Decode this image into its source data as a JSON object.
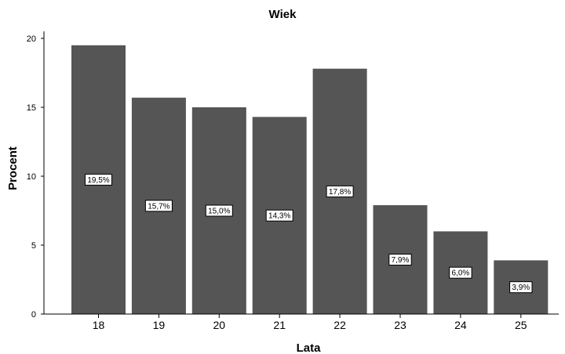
{
  "chart_data": {
    "type": "bar",
    "title": "Wiek",
    "xlabel": "Lata",
    "ylabel": "Procent",
    "categories": [
      "18",
      "19",
      "20",
      "21",
      "22",
      "23",
      "24",
      "25"
    ],
    "values": [
      19.5,
      15.7,
      15.0,
      14.3,
      17.8,
      7.9,
      6.0,
      3.9
    ],
    "data_labels": [
      "19,5%",
      "15,7%",
      "15,0%",
      "14,3%",
      "17,8%",
      "7,9%",
      "6,0%",
      "3,9%"
    ],
    "yticks": [
      0,
      5,
      10,
      15,
      20
    ],
    "ylim": [
      0,
      20.5
    ],
    "grid": false,
    "legend": "none",
    "bar_color": "#555555"
  }
}
